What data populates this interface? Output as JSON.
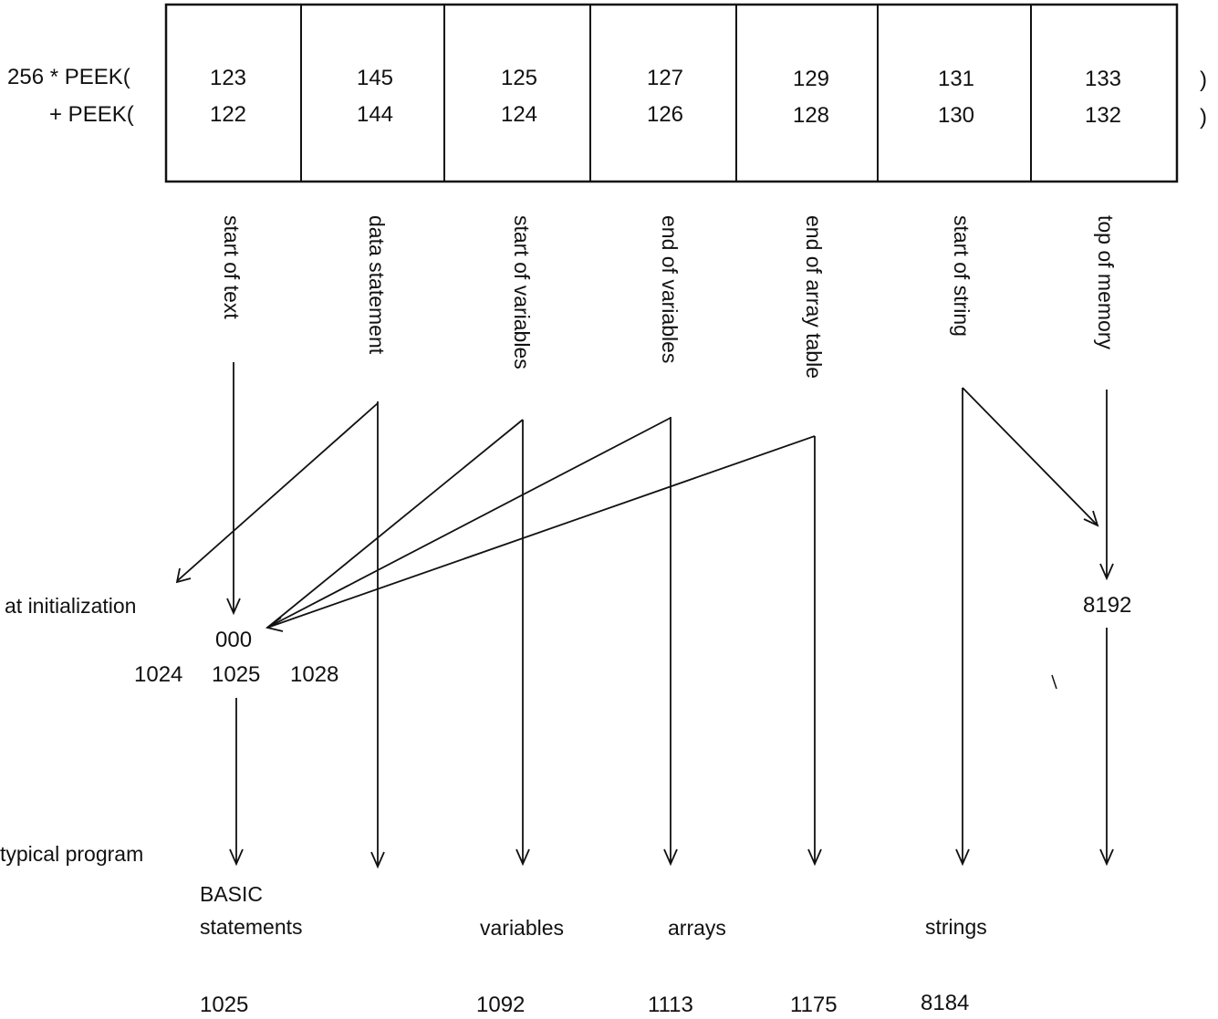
{
  "row_labels": {
    "high": "256 * PEEK(",
    "low": "+ PEEK(",
    "close1": ")",
    "close2": ")"
  },
  "cells": [
    {
      "high": "123",
      "low": "122",
      "label": "start of text"
    },
    {
      "high": "145",
      "low": "144",
      "label": "data statement"
    },
    {
      "high": "125",
      "low": "124",
      "label": "start of variables"
    },
    {
      "high": "127",
      "low": "126",
      "label": "end of variables"
    },
    {
      "high": "129",
      "low": "128",
      "label": "end of array table"
    },
    {
      "high": "131",
      "low": "130",
      "label": "start of string"
    },
    {
      "high": "133",
      "low": "132",
      "label": "top of memory"
    }
  ],
  "init": {
    "label": "at initialization",
    "value_000": "000",
    "addr_1024": "1024",
    "addr_1025": "1025",
    "addr_1028": "1028",
    "top": "8192"
  },
  "typical": {
    "label": "typical program",
    "basic_line1": "BASIC",
    "basic_line2": "statements",
    "variables": "variables",
    "arrays": "arrays",
    "strings": "strings",
    "values": [
      "1025",
      "1092",
      "1113",
      "1175",
      "8184"
    ]
  }
}
